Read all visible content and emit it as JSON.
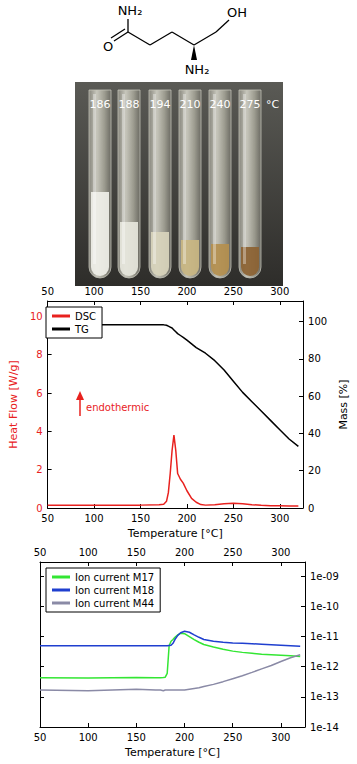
{
  "structure": {
    "atoms": [
      "NH₂",
      "O",
      "OH",
      "NH₂"
    ]
  },
  "photo": {
    "labels": [
      186,
      188,
      194,
      210,
      240,
      275
    ],
    "unit": "°C"
  },
  "chart_data": [
    {
      "type": "line",
      "xlabel": "Temperature [°C]",
      "ylabel": "Heat Flow [W/g]",
      "y2label": "Mass [%]",
      "annotation": "endothermic",
      "x": [
        50,
        100,
        150,
        170,
        175,
        178,
        180,
        182,
        184,
        186,
        188,
        190,
        193,
        196,
        200,
        205,
        210,
        215,
        220,
        230,
        240,
        250,
        260,
        270,
        280,
        290,
        300,
        310,
        320
      ],
      "xlim": [
        50,
        325
      ],
      "xticks": [
        50,
        100,
        150,
        200,
        250,
        300
      ],
      "ylim": [
        0,
        10.8
      ],
      "yticks": [
        0,
        2,
        4,
        6,
        8,
        10
      ],
      "y2lim": [
        0,
        111
      ],
      "y2ticks": [
        0,
        20,
        40,
        60,
        80,
        100
      ],
      "grid": false,
      "legend": "upper left",
      "series": [
        {
          "name": "DSC",
          "color": "#e8211e",
          "values": [
            0.15,
            0.15,
            0.15,
            0.17,
            0.2,
            0.35,
            0.8,
            1.8,
            3.0,
            3.8,
            3.0,
            1.8,
            1.5,
            1.3,
            0.9,
            0.5,
            0.3,
            0.18,
            0.15,
            0.17,
            0.22,
            0.25,
            0.22,
            0.17,
            0.14,
            0.12,
            0.12,
            0.1,
            0.1
          ]
        },
        {
          "name": "TG",
          "color": "#000000",
          "axis": "y2",
          "values": [
            98,
            98.2,
            98.3,
            98.3,
            98.2,
            98,
            97.5,
            97,
            96.5,
            95.5,
            94.5,
            93.5,
            92.5,
            91.5,
            90,
            88,
            86,
            84.5,
            83,
            79,
            74,
            68,
            62,
            57,
            52,
            47,
            42,
            37,
            33
          ]
        }
      ]
    },
    {
      "type": "line",
      "log": "y",
      "xlabel": "Temperature [°C]",
      "x": [
        50,
        100,
        150,
        170,
        175,
        178,
        180,
        182,
        184,
        186,
        188,
        190,
        193,
        196,
        200,
        205,
        210,
        215,
        220,
        230,
        240,
        250,
        260,
        270,
        280,
        290,
        300,
        310,
        320
      ],
      "xlim": [
        50,
        325
      ],
      "xticks": [
        50,
        100,
        150,
        200,
        250,
        300
      ],
      "ylim": [
        1e-14,
        3e-09
      ],
      "yticks": [
        {
          "value": 1e-14,
          "label": "1e-14"
        },
        {
          "value": 1e-13,
          "label": "1e-13"
        },
        {
          "value": 1e-12,
          "label": "1e-12"
        },
        {
          "value": 1e-11,
          "label": "1e-11"
        },
        {
          "value": 1e-10,
          "label": "1e-10"
        },
        {
          "value": 1e-09,
          "label": "1e-09"
        }
      ],
      "grid": false,
      "legend": "upper left",
      "series": [
        {
          "name": "Ion current M17",
          "color": "#33e633",
          "values": [
            4.3e-13,
            4.2e-13,
            4.4e-13,
            4.3e-13,
            4.3e-13,
            4.4e-13,
            4.5e-13,
            6e-13,
            5e-12,
            7e-12,
            8e-12,
            9.5e-12,
            1.15e-11,
            1.3e-11,
            1.25e-11,
            1e-11,
            8e-12,
            6.5e-12,
            5.5e-12,
            4.5e-12,
            3.8e-12,
            3.3e-12,
            3e-12,
            2.8e-12,
            2.6e-12,
            2.5e-12,
            2.4e-12,
            2.3e-12,
            2.2e-12
          ]
        },
        {
          "name": "Ion current M18",
          "color": "#1f3fcf",
          "values": [
            5e-12,
            5e-12,
            5e-12,
            5e-12,
            5e-12,
            5e-12,
            5e-12,
            5e-12,
            5.1e-12,
            5.2e-12,
            6e-12,
            8e-12,
            1.1e-11,
            1.35e-11,
            1.5e-11,
            1.4e-11,
            1.15e-11,
            9.5e-12,
            8e-12,
            7e-12,
            6.5e-12,
            6.2e-12,
            6e-12,
            5.8e-12,
            5.6e-12,
            5.4e-12,
            5.2e-12,
            5e-12,
            4.8e-12
          ]
        },
        {
          "name": "Ion current M44",
          "color": "#8a8aa6",
          "values": [
            1.7e-13,
            1.6e-13,
            1.8e-13,
            1.7e-13,
            1.7e-13,
            1.6e-13,
            1.7e-13,
            1.7e-13,
            1.7e-13,
            1.7e-13,
            1.7e-13,
            1.7e-13,
            1.7e-13,
            1.7e-13,
            1.7e-13,
            1.8e-13,
            1.9e-13,
            2e-13,
            2.2e-13,
            2.6e-13,
            3.2e-13,
            4e-13,
            5e-13,
            6.5e-13,
            8.5e-13,
            1.1e-12,
            1.5e-12,
            2e-12,
            2.5e-12
          ]
        }
      ]
    }
  ]
}
